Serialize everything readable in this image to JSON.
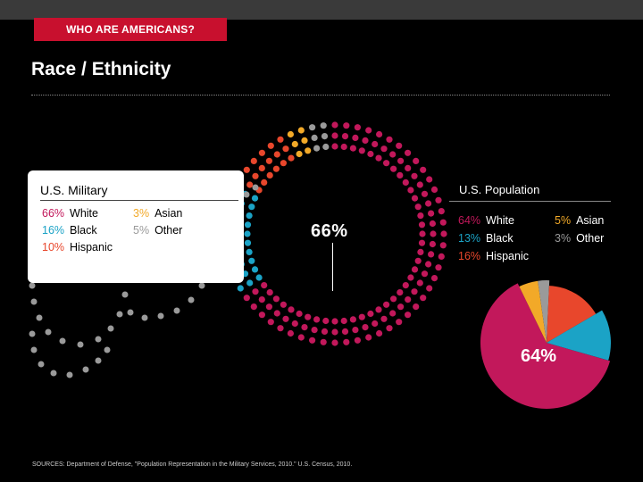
{
  "header": {
    "section_tag": "WHO ARE AMERICANS?",
    "page_title": "Race / Ethnicity"
  },
  "colors": {
    "white": "#c2185b",
    "black": "#1ba3c6",
    "hispanic": "#e8472c",
    "asian": "#f2a928",
    "other": "#9a9a9a"
  },
  "military": {
    "title": "U.S. Military",
    "stats": [
      {
        "pct": "66%",
        "label": "White",
        "key": "white"
      },
      {
        "pct": "16%",
        "label": "Black",
        "key": "black"
      },
      {
        "pct": "10%",
        "label": "Hispanic",
        "key": "hispanic"
      },
      {
        "pct": "3%",
        "label": "Asian",
        "key": "asian"
      },
      {
        "pct": "5%",
        "label": "Other",
        "key": "other"
      }
    ],
    "callout": "66%"
  },
  "population": {
    "title": "U.S. Population",
    "stats": [
      {
        "pct": "64%",
        "label": "White",
        "key": "white"
      },
      {
        "pct": "13%",
        "label": "Black",
        "key": "black"
      },
      {
        "pct": "16%",
        "label": "Hispanic",
        "key": "hispanic"
      },
      {
        "pct": "5%",
        "label": "Asian",
        "key": "asian"
      },
      {
        "pct": "3%",
        "label": "Other",
        "key": "other"
      }
    ],
    "callout": "64%"
  },
  "sources": "SOURCES: Department of Defense, \"Population Representation in the Military Services, 2010.\" U.S. Census, 2010.",
  "chart_data": [
    {
      "type": "pie",
      "title": "U.S. Military",
      "categories": [
        "White",
        "Black",
        "Hispanic",
        "Asian",
        "Other"
      ],
      "values": [
        66,
        16,
        10,
        3,
        5
      ],
      "style": "dotted-rings"
    },
    {
      "type": "pie",
      "title": "U.S. Population",
      "categories": [
        "White",
        "Black",
        "Hispanic",
        "Asian",
        "Other"
      ],
      "values": [
        64,
        13,
        16,
        5,
        3
      ]
    }
  ]
}
